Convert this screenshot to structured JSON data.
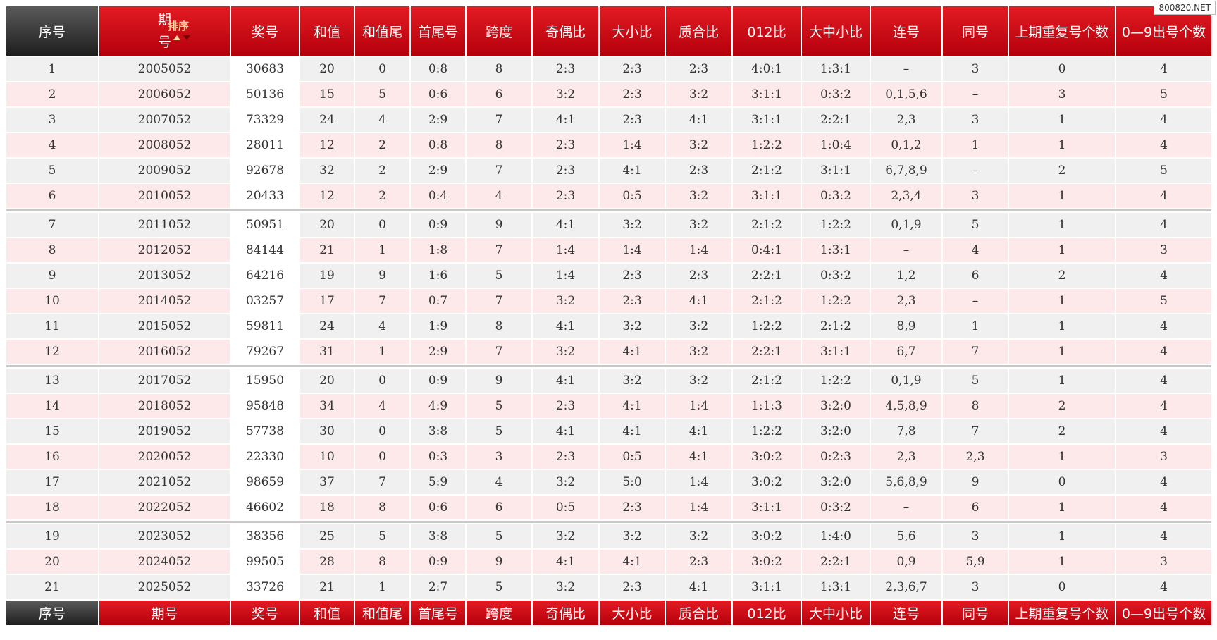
{
  "header": {
    "columns": [
      "序号",
      "期号",
      "奖号",
      "和值",
      "和值尾",
      "首尾号",
      "跨度",
      "奇偶比",
      "大小比",
      "质合比",
      "012比",
      "大中小比",
      "连号",
      "同号",
      "上期重复号个数",
      "0—9出号个数"
    ],
    "sort_label": "排序"
  },
  "table": {
    "groups": [
      [
        [
          "1",
          "2005052",
          "30683",
          "20",
          "0",
          "0:8",
          "8",
          "2:3",
          "2:3",
          "2:3",
          "4:0:1",
          "1:3:1",
          "–",
          "3",
          "0",
          "4"
        ],
        [
          "2",
          "2006052",
          "50136",
          "15",
          "5",
          "0:6",
          "6",
          "3:2",
          "2:3",
          "3:2",
          "3:1:1",
          "0:3:2",
          "0,1,5,6",
          "–",
          "3",
          "5"
        ],
        [
          "3",
          "2007052",
          "73329",
          "24",
          "4",
          "2:9",
          "7",
          "4:1",
          "2:3",
          "4:1",
          "3:1:1",
          "2:2:1",
          "2,3",
          "3",
          "1",
          "4"
        ],
        [
          "4",
          "2008052",
          "28011",
          "12",
          "2",
          "0:8",
          "8",
          "2:3",
          "1:4",
          "3:2",
          "1:2:2",
          "1:0:4",
          "0,1,2",
          "1",
          "1",
          "4"
        ],
        [
          "5",
          "2009052",
          "92678",
          "32",
          "2",
          "2:9",
          "7",
          "2:3",
          "4:1",
          "2:3",
          "2:1:2",
          "3:1:1",
          "6,7,8,9",
          "–",
          "2",
          "5"
        ],
        [
          "6",
          "2010052",
          "20433",
          "12",
          "2",
          "0:4",
          "4",
          "2:3",
          "0:5",
          "3:2",
          "3:1:1",
          "0:3:2",
          "2,3,4",
          "3",
          "1",
          "4"
        ]
      ],
      [
        [
          "7",
          "2011052",
          "50951",
          "20",
          "0",
          "0:9",
          "9",
          "4:1",
          "3:2",
          "3:2",
          "2:1:2",
          "1:2:2",
          "0,1,9",
          "5",
          "1",
          "4"
        ],
        [
          "8",
          "2012052",
          "84144",
          "21",
          "1",
          "1:8",
          "7",
          "1:4",
          "1:4",
          "1:4",
          "0:4:1",
          "1:3:1",
          "–",
          "4",
          "1",
          "3"
        ],
        [
          "9",
          "2013052",
          "64216",
          "19",
          "9",
          "1:6",
          "5",
          "1:4",
          "2:3",
          "2:3",
          "2:2:1",
          "0:3:2",
          "1,2",
          "6",
          "2",
          "4"
        ],
        [
          "10",
          "2014052",
          "03257",
          "17",
          "7",
          "0:7",
          "7",
          "3:2",
          "2:3",
          "4:1",
          "2:1:2",
          "1:2:2",
          "2,3",
          "–",
          "1",
          "5"
        ],
        [
          "11",
          "2015052",
          "59811",
          "24",
          "4",
          "1:9",
          "8",
          "4:1",
          "3:2",
          "3:2",
          "1:2:2",
          "2:1:2",
          "8,9",
          "1",
          "1",
          "4"
        ],
        [
          "12",
          "2016052",
          "79267",
          "31",
          "1",
          "2:9",
          "7",
          "3:2",
          "4:1",
          "3:2",
          "2:2:1",
          "3:1:1",
          "6,7",
          "7",
          "1",
          "4"
        ]
      ],
      [
        [
          "13",
          "2017052",
          "15950",
          "20",
          "0",
          "0:9",
          "9",
          "4:1",
          "3:2",
          "3:2",
          "2:1:2",
          "1:2:2",
          "0,1,9",
          "5",
          "1",
          "4"
        ],
        [
          "14",
          "2018052",
          "95848",
          "34",
          "4",
          "4:9",
          "5",
          "2:3",
          "4:1",
          "1:4",
          "1:1:3",
          "3:2:0",
          "4,5,8,9",
          "8",
          "2",
          "4"
        ],
        [
          "15",
          "2019052",
          "57738",
          "30",
          "0",
          "3:8",
          "5",
          "4:1",
          "4:1",
          "4:1",
          "1:2:2",
          "3:2:0",
          "7,8",
          "7",
          "2",
          "4"
        ],
        [
          "16",
          "2020052",
          "22330",
          "10",
          "0",
          "0:3",
          "3",
          "2:3",
          "0:5",
          "4:1",
          "3:0:2",
          "0:2:3",
          "2,3",
          "2,3",
          "1",
          "3"
        ],
        [
          "17",
          "2021052",
          "98659",
          "37",
          "7",
          "5:9",
          "4",
          "3:2",
          "5:0",
          "1:4",
          "3:0:2",
          "3:2:0",
          "5,6,8,9",
          "9",
          "0",
          "4"
        ],
        [
          "18",
          "2022052",
          "46602",
          "18",
          "8",
          "0:6",
          "6",
          "0:5",
          "2:3",
          "1:4",
          "3:1:1",
          "0:3:2",
          "–",
          "6",
          "1",
          "4"
        ]
      ],
      [
        [
          "19",
          "2023052",
          "38356",
          "25",
          "5",
          "3:8",
          "5",
          "3:2",
          "3:2",
          "3:2",
          "3:0:2",
          "1:4:0",
          "5,6",
          "3",
          "1",
          "4"
        ],
        [
          "20",
          "2024052",
          "99505",
          "28",
          "8",
          "0:9",
          "9",
          "4:1",
          "4:1",
          "2:3",
          "3:0:2",
          "2:2:1",
          "0,9",
          "5,9",
          "1",
          "3"
        ],
        [
          "21",
          "2025052",
          "33726",
          "21",
          "1",
          "2:7",
          "5",
          "3:2",
          "2:3",
          "4:1",
          "3:1:1",
          "1:3:1",
          "2,3,6,7",
          "3",
          "0",
          "4"
        ]
      ]
    ]
  },
  "footer": {
    "columns": [
      "序号",
      "期号",
      "奖号",
      "和值",
      "和值尾",
      "首尾号",
      "跨度",
      "奇偶比",
      "大小比",
      "质合比",
      "012比",
      "大中小比",
      "连号",
      "同号",
      "上期重复号个数",
      "0—9出号个数"
    ]
  },
  "watermark": "800820.NET"
}
